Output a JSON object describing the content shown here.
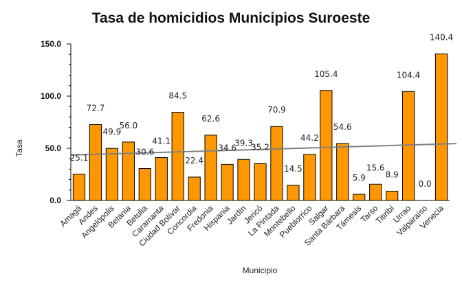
{
  "chart_data": {
    "type": "bar",
    "title": "Tasa de homicidios Municipios Suroeste",
    "xlabel": "Municipio",
    "ylabel": "Tasa",
    "ylim": [
      0,
      150
    ],
    "yticks": [
      "0.0",
      "50.0",
      "100.0",
      "150.0"
    ],
    "categories": [
      "Amagá",
      "Andes",
      "Angelópolis",
      "Betania",
      "Betulia",
      "Caramanta",
      "Ciudad Bolívar",
      "Concordia",
      "Fredonia",
      "Hispania",
      "Jardín",
      "Jericó",
      "La Pintada",
      "Montebello",
      "Pueblorrico",
      "Salgar",
      "Santa Bárbara",
      "Támesis",
      "Tarso",
      "Titiribí",
      "Urrao",
      "Valparaíso",
      "Venecia"
    ],
    "values": [
      25.1,
      72.7,
      49.9,
      56.0,
      30.6,
      41.1,
      84.5,
      22.4,
      62.6,
      34.6,
      39.3,
      35.2,
      70.9,
      14.5,
      44.2,
      105.4,
      54.6,
      5.9,
      15.6,
      8.9,
      104.4,
      0.0,
      140.4
    ],
    "data_labels": [
      "25.1",
      "72.7",
      "49.9",
      "56.0",
      "30.6",
      "41.1",
      "84.5",
      "22.4",
      "62.6",
      "34.6",
      "39.3",
      "35.2",
      "70.9",
      "14.5",
      "44.2",
      "105.4",
      "54.6",
      "5.9",
      "15.6",
      "8.9",
      "104.4",
      "0.0",
      "140.4"
    ],
    "trendline": {
      "start": 43.5,
      "end": 54.5
    },
    "grid": false,
    "legend": "none",
    "colors": {
      "bar": "#ff9800",
      "bar_edge": "#000000",
      "trendline": "#808080"
    }
  }
}
